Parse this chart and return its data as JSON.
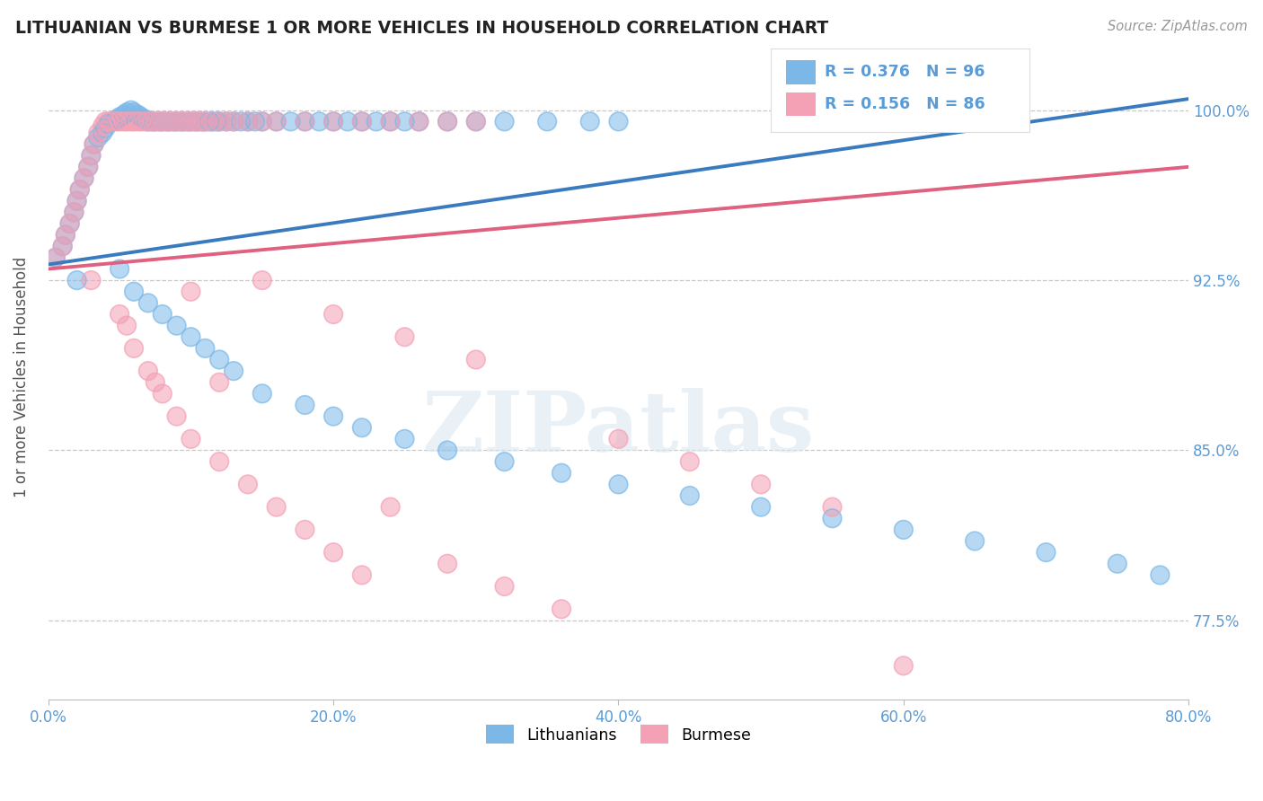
{
  "title": "LITHUANIAN VS BURMESE 1 OR MORE VEHICLES IN HOUSEHOLD CORRELATION CHART",
  "source_text": "Source: ZipAtlas.com",
  "ylabel": "1 or more Vehicles in Household",
  "watermark": "ZIPatlas",
  "xlim": [
    0.0,
    80.0
  ],
  "ylim": [
    74.0,
    102.5
  ],
  "yticks": [
    77.5,
    85.0,
    92.5,
    100.0
  ],
  "xticks": [
    0.0,
    20.0,
    40.0,
    60.0,
    80.0
  ],
  "legend_r_blue": "R = 0.376",
  "legend_n_blue": "N = 96",
  "legend_r_pink": "R = 0.156",
  "legend_n_pink": "N = 86",
  "blue_color": "#7bb8e8",
  "pink_color": "#f4a0b5",
  "trend_blue_color": "#3a7bbf",
  "trend_pink_color": "#e06080",
  "axis_label_color": "#5b9bd5",
  "grid_color": "#c8c8c8",
  "background_color": "#ffffff",
  "lit_x": [
    0.5,
    1.0,
    1.2,
    1.5,
    1.8,
    2.0,
    2.2,
    2.5,
    2.8,
    3.0,
    3.2,
    3.5,
    3.8,
    4.0,
    4.2,
    4.5,
    4.8,
    5.0,
    5.3,
    5.5,
    5.8,
    6.0,
    6.3,
    6.5,
    6.8,
    7.0,
    7.3,
    7.5,
    7.8,
    8.0,
    8.3,
    8.5,
    8.8,
    9.0,
    9.3,
    9.5,
    9.8,
    10.0,
    10.3,
    10.5,
    10.8,
    11.0,
    11.3,
    11.5,
    11.8,
    12.0,
    12.5,
    13.0,
    13.5,
    14.0,
    14.5,
    15.0,
    16.0,
    17.0,
    18.0,
    19.0,
    20.0,
    21.0,
    22.0,
    23.0,
    24.0,
    25.0,
    26.0,
    28.0,
    30.0,
    32.0,
    35.0,
    38.0,
    40.0,
    5.0,
    6.0,
    7.0,
    8.0,
    9.0,
    10.0,
    11.0,
    12.0,
    13.0,
    15.0,
    18.0,
    20.0,
    22.0,
    25.0,
    28.0,
    32.0,
    36.0,
    40.0,
    45.0,
    50.0,
    55.0,
    60.0,
    65.0,
    70.0,
    75.0,
    78.0,
    2.0
  ],
  "lit_y": [
    93.5,
    94.0,
    94.5,
    95.0,
    95.5,
    96.0,
    96.5,
    97.0,
    97.5,
    98.0,
    98.5,
    98.8,
    99.0,
    99.2,
    99.4,
    99.5,
    99.6,
    99.7,
    99.8,
    99.9,
    100.0,
    99.9,
    99.8,
    99.7,
    99.6,
    99.5,
    99.5,
    99.5,
    99.5,
    99.5,
    99.5,
    99.5,
    99.5,
    99.5,
    99.5,
    99.5,
    99.5,
    99.5,
    99.5,
    99.5,
    99.5,
    99.5,
    99.5,
    99.5,
    99.5,
    99.5,
    99.5,
    99.5,
    99.5,
    99.5,
    99.5,
    99.5,
    99.5,
    99.5,
    99.5,
    99.5,
    99.5,
    99.5,
    99.5,
    99.5,
    99.5,
    99.5,
    99.5,
    99.5,
    99.5,
    99.5,
    99.5,
    99.5,
    99.5,
    93.0,
    92.0,
    91.5,
    91.0,
    90.5,
    90.0,
    89.5,
    89.0,
    88.5,
    87.5,
    87.0,
    86.5,
    86.0,
    85.5,
    85.0,
    84.5,
    84.0,
    83.5,
    83.0,
    82.5,
    82.0,
    81.5,
    81.0,
    80.5,
    80.0,
    79.5,
    92.5
  ],
  "bur_x": [
    0.5,
    1.0,
    1.2,
    1.5,
    1.8,
    2.0,
    2.2,
    2.5,
    2.8,
    3.0,
    3.2,
    3.5,
    3.8,
    4.0,
    4.2,
    4.5,
    4.8,
    5.0,
    5.3,
    5.5,
    5.8,
    6.0,
    6.3,
    6.5,
    6.8,
    7.0,
    7.3,
    7.5,
    7.8,
    8.0,
    8.3,
    8.5,
    8.8,
    9.0,
    9.3,
    9.5,
    9.8,
    10.0,
    10.3,
    10.5,
    10.8,
    11.0,
    11.5,
    12.0,
    12.5,
    13.0,
    14.0,
    15.0,
    16.0,
    18.0,
    20.0,
    22.0,
    24.0,
    26.0,
    28.0,
    30.0,
    5.0,
    6.0,
    7.0,
    8.0,
    9.0,
    10.0,
    12.0,
    14.0,
    16.0,
    18.0,
    20.0,
    22.0,
    24.0,
    28.0,
    32.0,
    36.0,
    40.0,
    45.0,
    50.0,
    55.0,
    60.0,
    3.0,
    5.5,
    7.5,
    10.0,
    12.0,
    15.0,
    20.0,
    25.0,
    30.0
  ],
  "bur_y": [
    93.5,
    94.0,
    94.5,
    95.0,
    95.5,
    96.0,
    96.5,
    97.0,
    97.5,
    98.0,
    98.5,
    99.0,
    99.3,
    99.5,
    99.5,
    99.5,
    99.5,
    99.5,
    99.5,
    99.5,
    99.5,
    99.5,
    99.5,
    99.5,
    99.5,
    99.5,
    99.5,
    99.5,
    99.5,
    99.5,
    99.5,
    99.5,
    99.5,
    99.5,
    99.5,
    99.5,
    99.5,
    99.5,
    99.5,
    99.5,
    99.5,
    99.5,
    99.5,
    99.5,
    99.5,
    99.5,
    99.5,
    99.5,
    99.5,
    99.5,
    99.5,
    99.5,
    99.5,
    99.5,
    99.5,
    99.5,
    91.0,
    89.5,
    88.5,
    87.5,
    86.5,
    85.5,
    84.5,
    83.5,
    82.5,
    81.5,
    80.5,
    79.5,
    82.5,
    80.0,
    79.0,
    78.0,
    85.5,
    84.5,
    83.5,
    82.5,
    75.5,
    92.5,
    90.5,
    88.0,
    92.0,
    88.0,
    92.5,
    91.0,
    90.0,
    89.0
  ],
  "blue_trend_x0": 0.0,
  "blue_trend_y0": 93.2,
  "blue_trend_x1": 80.0,
  "blue_trend_y1": 100.5,
  "pink_trend_x0": 0.0,
  "pink_trend_y0": 93.0,
  "pink_trend_x1": 80.0,
  "pink_trend_y1": 97.5
}
